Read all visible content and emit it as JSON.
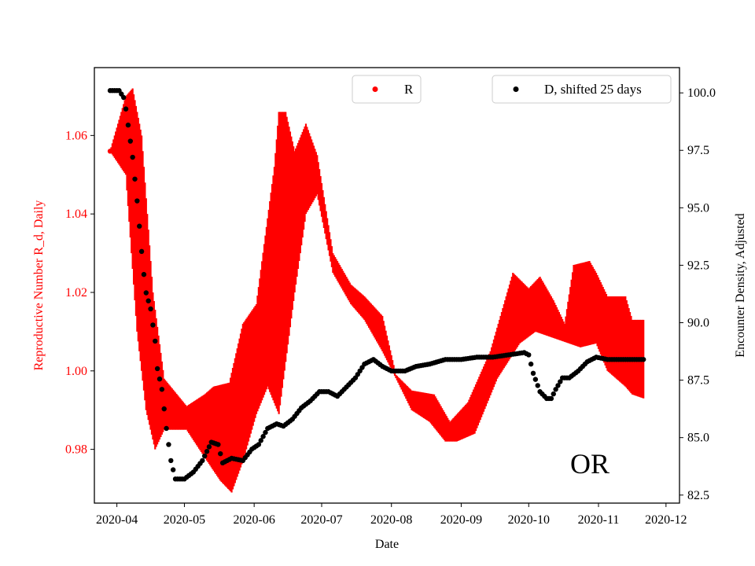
{
  "chart_data": {
    "type": "scatter",
    "xlabel": "Date",
    "ylabel_left": "Reproductive Number R_d, Daily",
    "ylabel_right": "Encounter Density, Adjusted",
    "annotation": "OR",
    "xlim": [
      "2020-03-22",
      "2020-12-07"
    ],
    "ylim_left": [
      0.9663,
      1.0773
    ],
    "ylim_right": [
      82.15,
      101.1
    ],
    "x_ticks": [
      "2020-04",
      "2020-05",
      "2020-06",
      "2020-07",
      "2020-08",
      "2020-09",
      "2020-10",
      "2020-11",
      "2020-12"
    ],
    "y_ticks_left": [
      "0.98",
      "1.00",
      "1.02",
      "1.04",
      "1.06"
    ],
    "y_ticks_right": [
      "82.5",
      "85.0",
      "87.5",
      "90.0",
      "92.5",
      "95.0",
      "97.5",
      "100.0"
    ],
    "legend": [
      {
        "label": "R",
        "color": "#ff0000",
        "position": "upper-center"
      },
      {
        "label": "D, shifted 25 days",
        "color": "#000000",
        "position": "upper-right"
      }
    ],
    "grid": false,
    "series": [
      {
        "name": "R",
        "axis": "left",
        "color": "#ff0000",
        "style": "dense oscillating band",
        "x_start": "2020-03-29",
        "x_end": "2020-11-21",
        "upper": [
          [
            "2020-03-29",
            1.056
          ],
          [
            "2020-04-05",
            1.07
          ],
          [
            "2020-04-08",
            1.072
          ],
          [
            "2020-04-12",
            1.06
          ],
          [
            "2020-04-17",
            1.02
          ],
          [
            "2020-04-22",
            0.998
          ],
          [
            "2020-05-02",
            0.991
          ],
          [
            "2020-05-10",
            0.994
          ],
          [
            "2020-05-14",
            0.996
          ],
          [
            "2020-05-21",
            0.997
          ],
          [
            "2020-05-27",
            1.012
          ],
          [
            "2020-06-02",
            1.017
          ],
          [
            "2020-06-10",
            1.052
          ],
          [
            "2020-06-12",
            1.066
          ],
          [
            "2020-06-15",
            1.066
          ],
          [
            "2020-06-19",
            1.056
          ],
          [
            "2020-06-24",
            1.063
          ],
          [
            "2020-06-29",
            1.055
          ],
          [
            "2020-07-06",
            1.03
          ],
          [
            "2020-07-14",
            1.022
          ],
          [
            "2020-07-20",
            1.019
          ],
          [
            "2020-07-28",
            1.014
          ],
          [
            "2020-08-03",
            0.999
          ],
          [
            "2020-08-10",
            0.995
          ],
          [
            "2020-08-20",
            0.994
          ],
          [
            "2020-08-27",
            0.987
          ],
          [
            "2020-09-04",
            0.992
          ],
          [
            "2020-09-14",
            1.005
          ],
          [
            "2020-09-24",
            1.025
          ],
          [
            "2020-10-01",
            1.021
          ],
          [
            "2020-10-06",
            1.024
          ],
          [
            "2020-10-12",
            1.018
          ],
          [
            "2020-10-17",
            1.012
          ],
          [
            "2020-10-21",
            1.027
          ],
          [
            "2020-10-28",
            1.028
          ],
          [
            "2020-10-31",
            1.025
          ],
          [
            "2020-11-05",
            1.019
          ],
          [
            "2020-11-13",
            1.019
          ],
          [
            "2020-11-16",
            1.013
          ],
          [
            "2020-11-21",
            1.013
          ]
        ],
        "lower": [
          [
            "2020-03-29",
            1.056
          ],
          [
            "2020-04-05",
            1.05
          ],
          [
            "2020-04-10",
            1.01
          ],
          [
            "2020-04-14",
            0.99
          ],
          [
            "2020-04-18",
            0.98
          ],
          [
            "2020-04-22",
            0.985
          ],
          [
            "2020-05-02",
            0.985
          ],
          [
            "2020-05-10",
            0.978
          ],
          [
            "2020-05-17",
            0.972
          ],
          [
            "2020-05-22",
            0.969
          ],
          [
            "2020-05-27",
            0.977
          ],
          [
            "2020-06-02",
            0.989
          ],
          [
            "2020-06-07",
            0.996
          ],
          [
            "2020-06-12",
            0.989
          ],
          [
            "2020-06-19",
            1.02
          ],
          [
            "2020-06-24",
            1.04
          ],
          [
            "2020-06-29",
            1.045
          ],
          [
            "2020-07-06",
            1.025
          ],
          [
            "2020-07-14",
            1.017
          ],
          [
            "2020-07-20",
            1.013
          ],
          [
            "2020-07-28",
            1.005
          ],
          [
            "2020-08-04",
            0.997
          ],
          [
            "2020-08-10",
            0.99
          ],
          [
            "2020-08-18",
            0.987
          ],
          [
            "2020-08-25",
            0.982
          ],
          [
            "2020-08-30",
            0.982
          ],
          [
            "2020-09-07",
            0.984
          ],
          [
            "2020-09-17",
            0.998
          ],
          [
            "2020-09-27",
            1.007
          ],
          [
            "2020-10-04",
            1.01
          ],
          [
            "2020-10-14",
            1.008
          ],
          [
            "2020-10-24",
            1.006
          ],
          [
            "2020-10-31",
            1.007
          ],
          [
            "2020-11-05",
            1.0
          ],
          [
            "2020-11-13",
            0.996
          ],
          [
            "2020-11-16",
            0.994
          ],
          [
            "2020-11-21",
            0.993
          ]
        ]
      },
      {
        "name": "D, shifted 25 days",
        "axis": "right",
        "color": "#000000",
        "style": "dots",
        "points": [
          [
            "2020-03-29",
            100.1
          ],
          [
            "2020-04-02",
            100.1
          ],
          [
            "2020-04-04",
            99.8
          ],
          [
            "2020-04-05",
            99.3
          ],
          [
            "2020-04-06",
            98.6
          ],
          [
            "2020-04-08",
            97.2
          ],
          [
            "2020-04-10",
            95.3
          ],
          [
            "2020-04-12",
            93.1
          ],
          [
            "2020-04-13",
            92.1
          ],
          [
            "2020-04-14",
            91.3
          ],
          [
            "2020-04-16",
            90.6
          ],
          [
            "2020-04-18",
            89.2
          ],
          [
            "2020-04-19",
            88.0
          ],
          [
            "2020-04-21",
            87.1
          ],
          [
            "2020-04-23",
            85.4
          ],
          [
            "2020-04-25",
            84.0
          ],
          [
            "2020-04-27",
            83.2
          ],
          [
            "2020-05-01",
            83.2
          ],
          [
            "2020-05-05",
            83.5
          ],
          [
            "2020-05-09",
            84.0
          ],
          [
            "2020-05-13",
            84.8
          ],
          [
            "2020-05-16",
            84.7
          ],
          [
            "2020-05-18",
            83.9
          ],
          [
            "2020-05-22",
            84.1
          ],
          [
            "2020-05-27",
            84.0
          ],
          [
            "2020-05-31",
            84.5
          ],
          [
            "2020-06-03",
            84.7
          ],
          [
            "2020-06-07",
            85.4
          ],
          [
            "2020-06-11",
            85.6
          ],
          [
            "2020-06-14",
            85.5
          ],
          [
            "2020-06-18",
            85.8
          ],
          [
            "2020-06-22",
            86.3
          ],
          [
            "2020-06-26",
            86.6
          ],
          [
            "2020-06-30",
            87.0
          ],
          [
            "2020-07-04",
            87.0
          ],
          [
            "2020-07-08",
            86.8
          ],
          [
            "2020-07-12",
            87.2
          ],
          [
            "2020-07-16",
            87.6
          ],
          [
            "2020-07-20",
            88.2
          ],
          [
            "2020-07-24",
            88.4
          ],
          [
            "2020-07-28",
            88.1
          ],
          [
            "2020-08-01",
            87.9
          ],
          [
            "2020-08-07",
            87.9
          ],
          [
            "2020-08-12",
            88.1
          ],
          [
            "2020-08-18",
            88.2
          ],
          [
            "2020-08-25",
            88.4
          ],
          [
            "2020-09-01",
            88.4
          ],
          [
            "2020-09-08",
            88.5
          ],
          [
            "2020-09-15",
            88.5
          ],
          [
            "2020-09-22",
            88.6
          ],
          [
            "2020-09-29",
            88.7
          ],
          [
            "2020-10-01",
            88.6
          ],
          [
            "2020-10-03",
            87.8
          ],
          [
            "2020-10-06",
            87.0
          ],
          [
            "2020-10-09",
            86.7
          ],
          [
            "2020-10-11",
            86.7
          ],
          [
            "2020-10-13",
            87.1
          ],
          [
            "2020-10-16",
            87.6
          ],
          [
            "2020-10-19",
            87.6
          ],
          [
            "2020-10-23",
            87.9
          ],
          [
            "2020-10-27",
            88.3
          ],
          [
            "2020-10-31",
            88.5
          ],
          [
            "2020-11-05",
            88.4
          ],
          [
            "2020-11-12",
            88.4
          ],
          [
            "2020-11-21",
            88.4
          ]
        ]
      }
    ]
  }
}
